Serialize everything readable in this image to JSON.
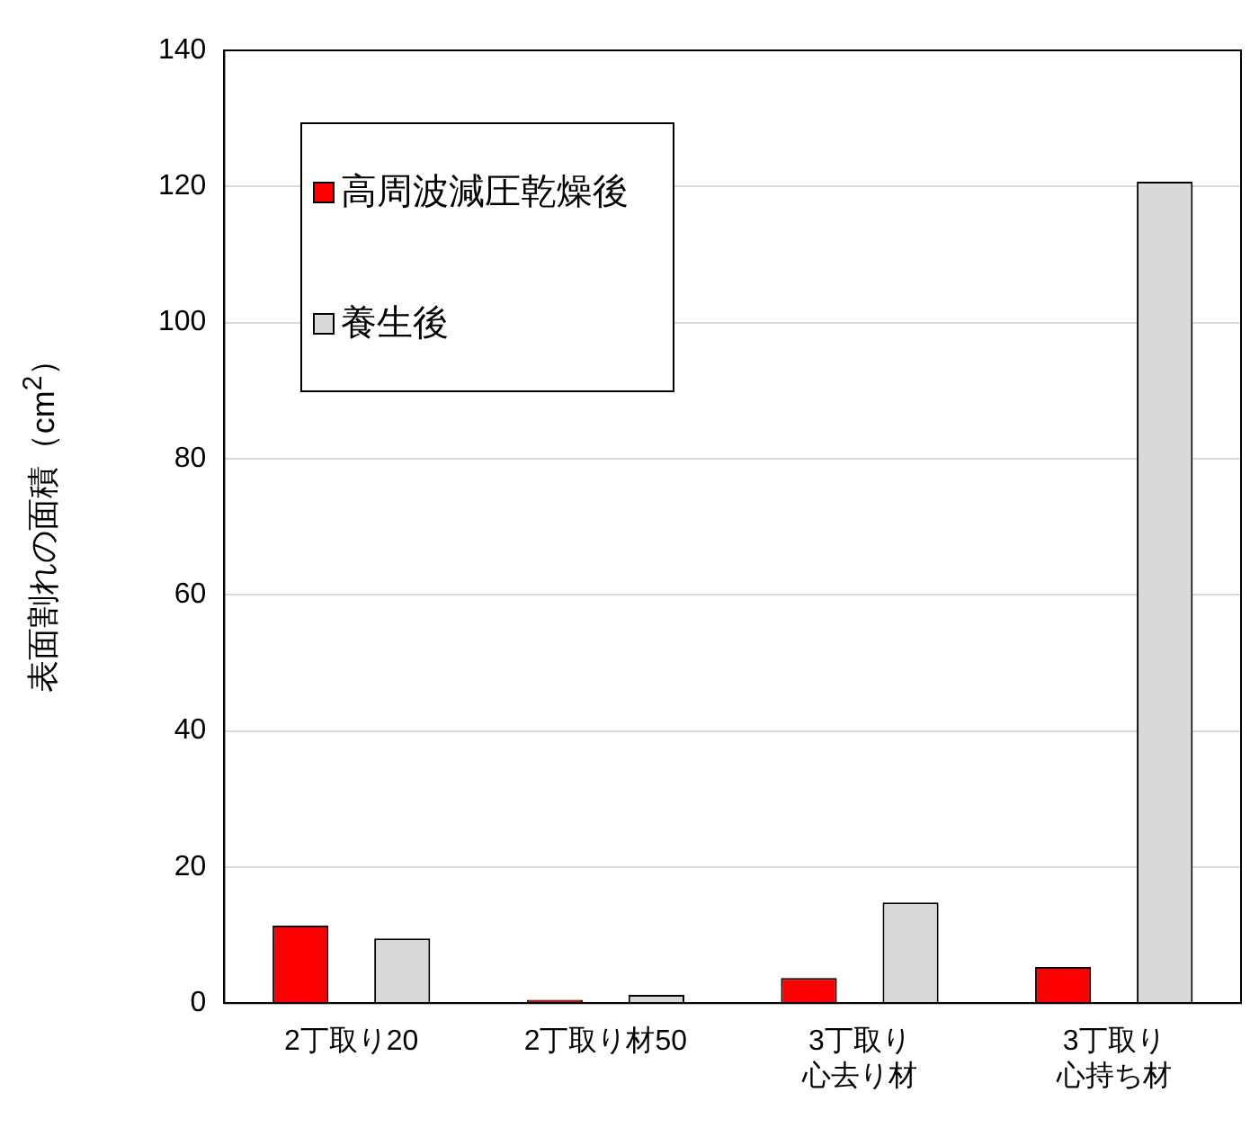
{
  "chart_data": {
    "type": "bar",
    "ylabel": "表面割れの面積（cm$^{2}$）",
    "categories": [
      "2丁取り20",
      "2丁取り材50",
      "3丁取り心去り材",
      "3丁取り心持ち材"
    ],
    "series": [
      {
        "name": "高周波減圧乾燥後",
        "color": "#ff0000",
        "values": [
          11.4,
          0.5,
          3.7,
          5.3
        ]
      },
      {
        "name": "養生後",
        "color": "#d9d9d9",
        "values": [
          9.5,
          1.2,
          14.8,
          120.7
        ]
      }
    ],
    "ylim": [
      0,
      140
    ],
    "yticks": [
      0,
      20,
      40,
      60,
      80,
      100,
      120,
      140
    ],
    "grid": "y",
    "legend": "top left"
  }
}
